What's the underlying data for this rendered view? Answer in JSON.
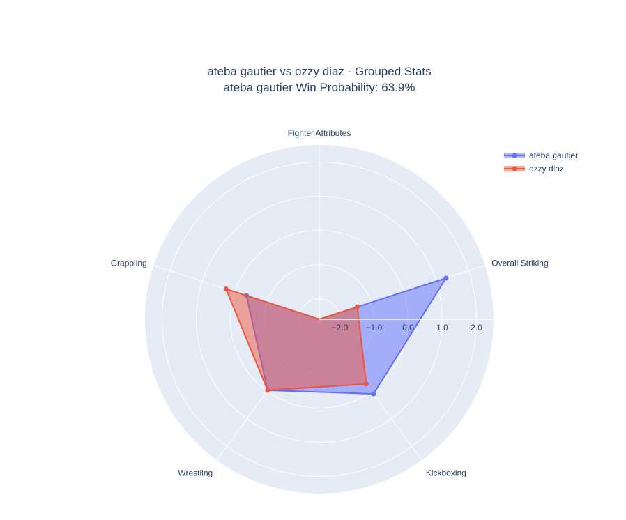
{
  "chart_data": {
    "type": "radar",
    "title": "ateba gautier vs ozzy diaz - Grouped Stats",
    "subtitle": "ateba gautier Win Probability: 63.9%",
    "categories": [
      "Fighter Attributes",
      "Overall Striking",
      "Kickboxing",
      "Wrestling",
      "Grappling"
    ],
    "radial_range": [
      -2.6,
      2.5
    ],
    "radial_ticks": [
      "−2.0",
      "−1.0",
      "0.0",
      "1.0",
      "2.0"
    ],
    "radial_tick_values": [
      -2,
      -1,
      0,
      1,
      2
    ],
    "grid": true,
    "legend_position": "top-right",
    "series": [
      {
        "name": "ateba gautier",
        "color": "#636efa",
        "values": [
          -2.6,
          1.3,
          0.1,
          -0.03,
          -0.36
        ]
      },
      {
        "name": "ozzy diaz",
        "color": "#ef553b",
        "values": [
          -2.6,
          -1.43,
          -0.26,
          -0.03,
          0.27
        ]
      }
    ],
    "background_color": "#e5ecf6"
  }
}
